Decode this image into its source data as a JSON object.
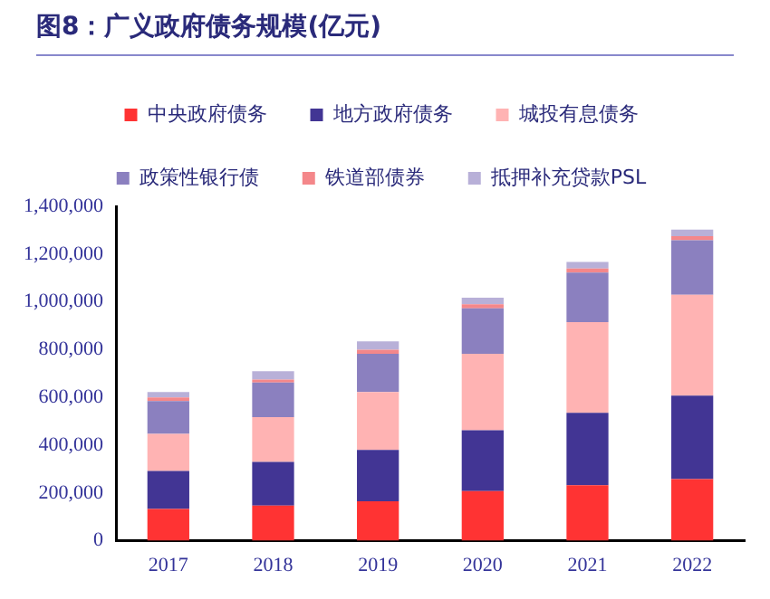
{
  "chart_data": {
    "type": "bar",
    "title": "图8：广义政府债务规模(亿元)",
    "stacked": true,
    "legend": "top",
    "grid": false,
    "categories": [
      "2017",
      "2018",
      "2019",
      "2020",
      "2021",
      "2022"
    ],
    "ylim": [
      0,
      1400000
    ],
    "yticks": [
      {
        "value": 0,
        "label": "0"
      },
      {
        "value": 200000,
        "label": "200,000"
      },
      {
        "value": 400000,
        "label": "400,000"
      },
      {
        "value": 600000,
        "label": "600,000"
      },
      {
        "value": 800000,
        "label": "800,000"
      },
      {
        "value": 1000000,
        "label": "1,000,000"
      },
      {
        "value": 1200000,
        "label": "1,200,000"
      },
      {
        "value": 1400000,
        "label": "1,400,000"
      }
    ],
    "series": [
      {
        "name": "中央政府债务",
        "color": "#ff3333",
        "values": [
          132500,
          147500,
          165000,
          207500,
          232500,
          257500
        ]
      },
      {
        "name": "地方政府债务",
        "color": "#423594",
        "values": [
          160000,
          182500,
          215000,
          255000,
          302500,
          350000
        ]
      },
      {
        "name": "城投有息债务",
        "color": "#ffb3b3",
        "values": [
          155000,
          187500,
          242500,
          320000,
          380000,
          422500
        ]
      },
      {
        "name": "政策性银行债",
        "color": "#8b80bf",
        "values": [
          137500,
          145000,
          160000,
          190000,
          207500,
          227500
        ]
      },
      {
        "name": "铁道部债券",
        "color": "#f4878a",
        "values": [
          15000,
          12500,
          17500,
          17500,
          17500,
          17500
        ]
      },
      {
        "name": "抵押补充贷款PSL",
        "color": "#b8b0d8",
        "values": [
          22500,
          35000,
          35000,
          27500,
          27500,
          27500
        ]
      }
    ]
  }
}
